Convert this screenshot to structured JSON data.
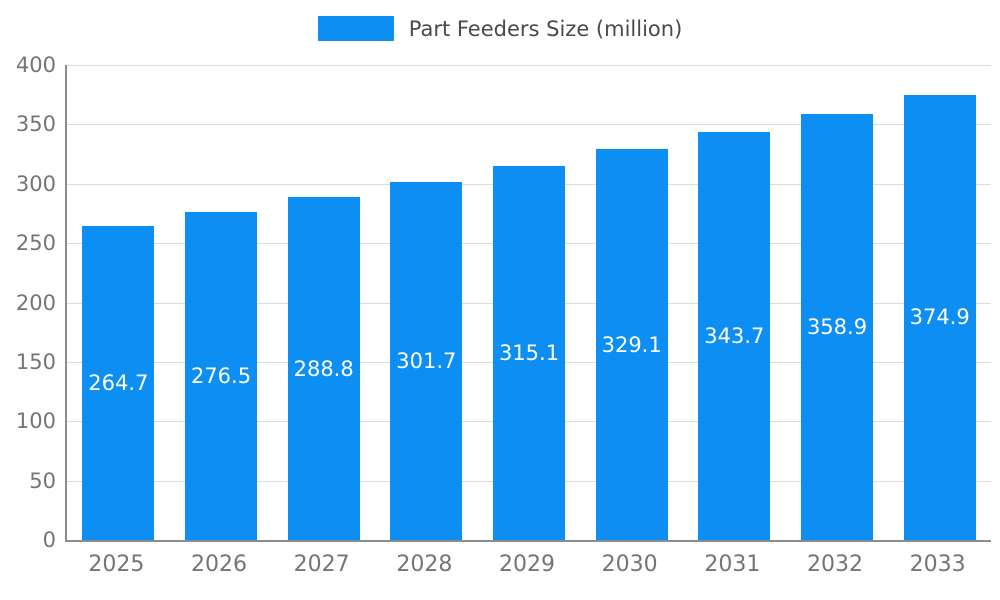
{
  "chart_data": {
    "type": "bar",
    "title": "",
    "xlabel": "",
    "ylabel": "",
    "categories": [
      "2025",
      "2026",
      "2027",
      "2028",
      "2029",
      "2030",
      "2031",
      "2032",
      "2033"
    ],
    "series": [
      {
        "name": "Part Feeders Size (million)",
        "values": [
          264.7,
          276.5,
          288.8,
          301.7,
          315.1,
          329.1,
          343.7,
          358.9,
          374.9
        ]
      }
    ],
    "value_labels": [
      "264.7",
      "276.5",
      "288.8",
      "301.7",
      "315.1",
      "329.1",
      "343.7",
      "358.9",
      "374.9"
    ],
    "ylim": [
      0,
      400
    ],
    "yticks": [
      0,
      50,
      100,
      150,
      200,
      250,
      300,
      350,
      400
    ],
    "grid": true,
    "legend_position": "top",
    "colors": {
      "bar": "#0d8ef2",
      "bar_value_label": "#ffffff",
      "axis_line": "#8c8c8c",
      "gridline": "#dcdcdc",
      "tick_label": "#757575",
      "legend_text": "#4a4a4a",
      "background": "#ffffff"
    }
  }
}
